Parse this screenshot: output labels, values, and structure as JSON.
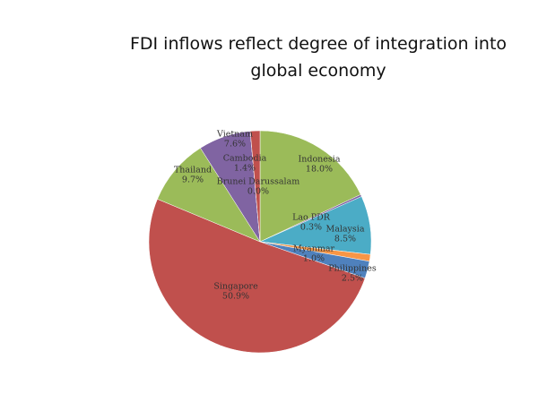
{
  "chart_data": {
    "type": "pie",
    "title": "FDI inflows reflect degree of integration into global economy",
    "categories": [
      "Indonesia",
      "Lao PDR",
      "Malaysia",
      "Myanmar",
      "Philippines",
      "Singapore",
      "Thailand",
      "Vietnam",
      "Brunei Darussalam",
      "Cambodia"
    ],
    "values": [
      18.0,
      0.3,
      8.5,
      1.0,
      2.5,
      50.9,
      9.7,
      7.6,
      0.0,
      1.4
    ],
    "value_labels": [
      "18.0%",
      "0.3%",
      "8.5%",
      "1.0%",
      "2.5%",
      "50.9%",
      "9.7%",
      "7.6%",
      "0.0%",
      "1.4%"
    ],
    "colors": [
      "#9bbb59",
      "#8064a2",
      "#4bacc6",
      "#f79646",
      "#4f81bd",
      "#c0504d",
      "#9bbb59",
      "#8064a2",
      "#4bacc6",
      "#c0504d"
    ]
  }
}
